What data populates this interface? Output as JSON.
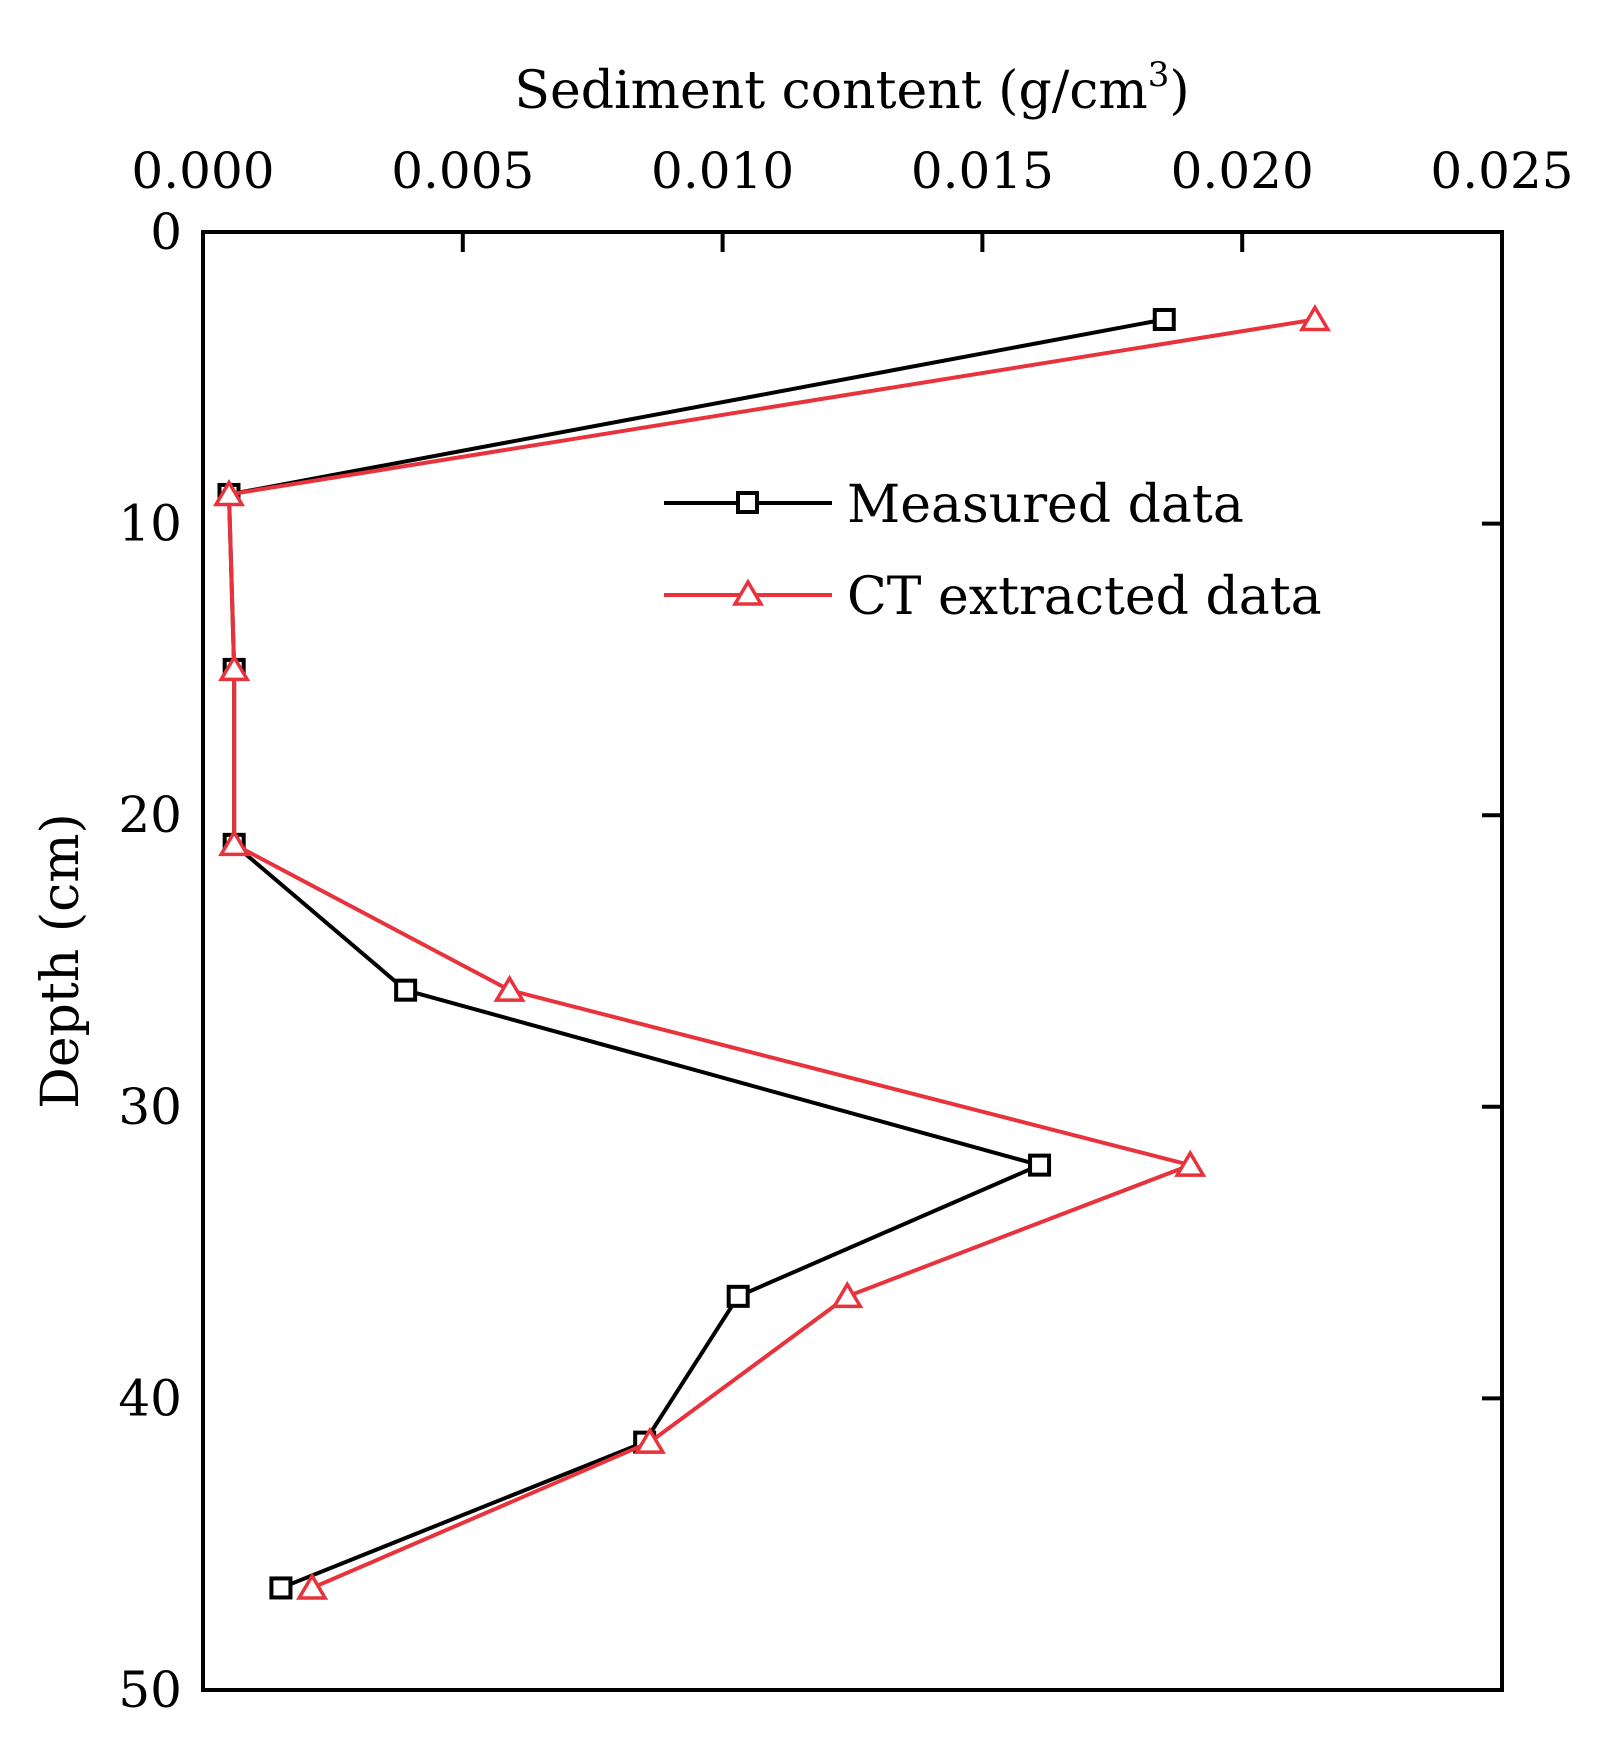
{
  "chart_data": {
    "type": "line",
    "orientation": "depth-profile",
    "xlabel_main": "Sediment content (g/cm",
    "xlabel_sup": "3",
    "xlabel_tail": ")",
    "ylabel": "Depth (cm)",
    "x_axis_position": "top",
    "y_axis_inverted": true,
    "xlim": [
      0.0,
      0.025
    ],
    "ylim": [
      0,
      50
    ],
    "x_ticks": [
      "0.000",
      "0.005",
      "0.010",
      "0.015",
      "0.020",
      "0.025"
    ],
    "y_ticks": [
      "0",
      "10",
      "20",
      "30",
      "40",
      "50"
    ],
    "legend_position": "upper-right",
    "series": [
      {
        "name": "Measured data",
        "color": "#000000",
        "marker": "square",
        "depth": [
          3,
          9,
          15,
          21,
          26,
          32,
          36.5,
          41.5,
          46.5
        ],
        "values": [
          0.0185,
          0.0005,
          0.0006,
          0.0006,
          0.0039,
          0.0161,
          0.0103,
          0.0085,
          0.0015
        ]
      },
      {
        "name": "CT extracted data",
        "color": "#e8333c",
        "marker": "triangle",
        "depth": [
          3,
          9,
          15,
          21,
          26,
          32,
          36.5,
          41.5,
          46.5
        ],
        "values": [
          0.0214,
          0.0005,
          0.0006,
          0.0006,
          0.0059,
          0.019,
          0.0124,
          0.0086,
          0.0021
        ]
      }
    ]
  }
}
